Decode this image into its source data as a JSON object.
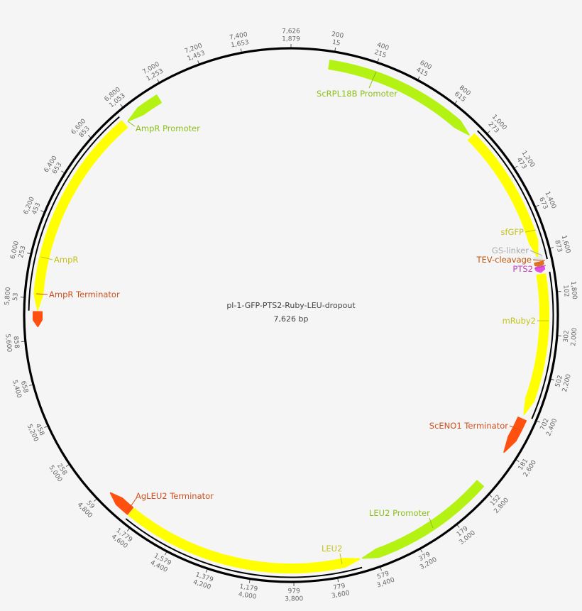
{
  "plasmid": {
    "name": "pl-1-GFP-PTS2-Ruby-LEU-dropout",
    "length_label": "7,626 bp",
    "length_bp": 7626
  },
  "features": [
    {
      "name": "ScRPL18B Promoter",
      "start": 185,
      "end": 945,
      "direction": "forward",
      "color": "#b3f213",
      "label_color": "#8cbf1c"
    },
    {
      "name": "sfGFP",
      "start": 962,
      "end": 1625,
      "direction": "forward",
      "color": "#ffff00",
      "label_color": "#c4c21c"
    },
    {
      "name": "GS-linker",
      "start": 1627,
      "end": 1650,
      "direction": "forward",
      "color": "#e8e8e8",
      "label_color": "#aaaaaa"
    },
    {
      "name": "TEV-cleavage",
      "start": 1652,
      "end": 1672,
      "direction": "forward",
      "color": "#e07020",
      "label_color": "#c0560f"
    },
    {
      "name": "PTS2",
      "start": 1674,
      "end": 1700,
      "direction": "forward",
      "color": "#e055e0",
      "label_color": "#c040c0"
    },
    {
      "name": "mRuby2",
      "start": 1712,
      "end": 2395,
      "direction": "forward",
      "color": "#ffff00",
      "label_color": "#c4c21c"
    },
    {
      "name": "ScENO1 Terminator",
      "start": 2420,
      "end": 2600,
      "direction": "forward",
      "color": "#ff5010",
      "label_color": "#d0501e"
    },
    {
      "name": "LEU2 Promoter",
      "start": 2790,
      "end": 3465,
      "direction": "forward",
      "color": "#b3f213",
      "label_color": "#8cbf1c"
    },
    {
      "name": "LEU2",
      "start": 3480,
      "end": 4640,
      "direction": "reverse",
      "color": "#ffff00",
      "label_color": "#c4c21c"
    },
    {
      "name": "AgLEU2 Terminator",
      "start": 4648,
      "end": 4775,
      "direction": "forward",
      "color": "#ff5010",
      "label_color": "#d0501e"
    },
    {
      "name": "AmpR Terminator",
      "start": 5665,
      "end": 5735,
      "direction": "reverse",
      "color": "#ff5010",
      "label_color": "#d0501e"
    },
    {
      "name": "AmpR",
      "start": 5745,
      "end": 6755,
      "direction": "reverse",
      "color": "#ffff00",
      "label_color": "#c4c21c"
    },
    {
      "name": "AmpR Promoter",
      "start": 6780,
      "end": 6960,
      "direction": "reverse",
      "color": "#b3f213",
      "label_color": "#8cbf1c"
    }
  ],
  "secondary_strand_ranges": [
    [
      960,
      1645
    ],
    [
      1705,
      2400
    ],
    [
      3480,
      4640
    ],
    [
      5740,
      6760
    ]
  ],
  "ticks": [
    {
      "pos": 200,
      "outer": "200",
      "inner": "15"
    },
    {
      "pos": 400,
      "outer": "400",
      "inner": "215"
    },
    {
      "pos": 600,
      "outer": "600",
      "inner": "415"
    },
    {
      "pos": 800,
      "outer": "800",
      "inner": "615"
    },
    {
      "pos": 1000,
      "outer": "1,000",
      "inner": "273"
    },
    {
      "pos": 1200,
      "outer": "1,200",
      "inner": "473"
    },
    {
      "pos": 1400,
      "outer": "1,400",
      "inner": "673"
    },
    {
      "pos": 1600,
      "outer": "1,600",
      "inner": "873"
    },
    {
      "pos": 1800,
      "outer": "1,800",
      "inner": "102"
    },
    {
      "pos": 2000,
      "outer": "2,000",
      "inner": "302"
    },
    {
      "pos": 2200,
      "outer": "2,200",
      "inner": "502"
    },
    {
      "pos": 2400,
      "outer": "2,400",
      "inner": "702"
    },
    {
      "pos": 2600,
      "outer": "2,600",
      "inner": "181"
    },
    {
      "pos": 2800,
      "outer": "2,800",
      "inner": "152"
    },
    {
      "pos": 3000,
      "outer": "3,000",
      "inner": "179"
    },
    {
      "pos": 3200,
      "outer": "3,200",
      "inner": "379"
    },
    {
      "pos": 3400,
      "outer": "3,400",
      "inner": "579"
    },
    {
      "pos": 3600,
      "outer": "3,600",
      "inner": "779"
    },
    {
      "pos": 3800,
      "outer": "3,800",
      "inner": "979"
    },
    {
      "pos": 4000,
      "outer": "4,000",
      "inner": "1,179"
    },
    {
      "pos": 4200,
      "outer": "4,200",
      "inner": "1,379"
    },
    {
      "pos": 4400,
      "outer": "4,400",
      "inner": "1,579"
    },
    {
      "pos": 4600,
      "outer": "4,600",
      "inner": "1,779"
    },
    {
      "pos": 4800,
      "outer": "4,800",
      "inner": "59"
    },
    {
      "pos": 5000,
      "outer": "5,000",
      "inner": "258"
    },
    {
      "pos": 5200,
      "outer": "5,200",
      "inner": "458"
    },
    {
      "pos": 5400,
      "outer": "5,400",
      "inner": "658"
    },
    {
      "pos": 5600,
      "outer": "5,600",
      "inner": "858"
    },
    {
      "pos": 5800,
      "outer": "5,800",
      "inner": "53"
    },
    {
      "pos": 6000,
      "outer": "6,000",
      "inner": "253"
    },
    {
      "pos": 6200,
      "outer": "6,200",
      "inner": "453"
    },
    {
      "pos": 6400,
      "outer": "6,400",
      "inner": "653"
    },
    {
      "pos": 6600,
      "outer": "6,600",
      "inner": "853"
    },
    {
      "pos": 6800,
      "outer": "6,800",
      "inner": "1,053"
    },
    {
      "pos": 7000,
      "outer": "7,000",
      "inner": "1,253"
    },
    {
      "pos": 7200,
      "outer": "7,200",
      "inner": "1,453"
    },
    {
      "pos": 7400,
      "outer": "7,400",
      "inner": "1,653"
    },
    {
      "pos": 7626,
      "outer": "7,626",
      "inner": "1,879"
    }
  ]
}
